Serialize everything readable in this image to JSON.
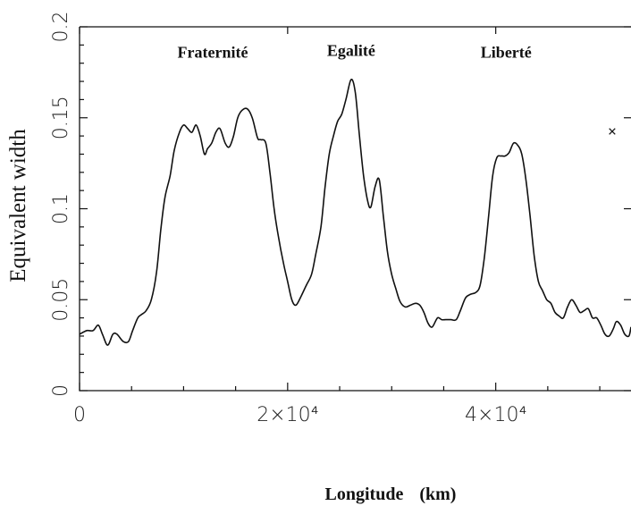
{
  "chart_data": {
    "type": "line",
    "title": "",
    "xlabel": "Longitude",
    "xunit": "(km)",
    "ylabel": "Equivalent width",
    "xlim": [
      0,
      53000
    ],
    "ylim": [
      0,
      0.2
    ],
    "x_ticks": [
      {
        "value": 0,
        "label": "0"
      },
      {
        "value": 20000,
        "label": "2×10⁴"
      },
      {
        "value": 40000,
        "label": "4×10⁴"
      }
    ],
    "y_ticks": [
      {
        "value": 0,
        "label": "0"
      },
      {
        "value": 0.05,
        "label": "0.05"
      },
      {
        "value": 0.1,
        "label": "0.1"
      },
      {
        "value": 0.15,
        "label": "0.15"
      },
      {
        "value": 0.2,
        "label": "0.2"
      }
    ],
    "annotations": [
      {
        "text": "Fraternité",
        "x": 12800,
        "y": 0.183
      },
      {
        "text": "Egalité",
        "x": 26100,
        "y": 0.184
      },
      {
        "text": "Liberté",
        "x": 41000,
        "y": 0.183
      }
    ],
    "marker": {
      "text": "×",
      "x": 51200,
      "y": 0.142
    },
    "series": [
      {
        "x": [
          0,
          700,
          1300,
          1800,
          2200,
          2700,
          3200,
          3600,
          4200,
          4700,
          5100,
          5600,
          6000,
          6400,
          6900,
          7400,
          7800,
          8200,
          8700,
          9100,
          9600,
          10000,
          10400,
          10800,
          11200,
          11600,
          12000,
          12300,
          12700,
          13100,
          13500,
          14000,
          14400,
          14800,
          15200,
          15600,
          16100,
          16600,
          17100,
          17400,
          17900,
          18300,
          18700,
          19100,
          19600,
          20000,
          20400,
          20800,
          21300,
          21800,
          22300,
          22700,
          23200,
          23600,
          24000,
          24400,
          24800,
          25200,
          25600,
          26100,
          26500,
          26900,
          27300,
          27700,
          28000,
          28400,
          28800,
          29200,
          29600,
          30000,
          30400,
          30800,
          31300,
          31800,
          32300,
          32700,
          33100,
          33500,
          33900,
          34400,
          34800,
          35200,
          35700,
          36200,
          36600,
          37100,
          37600,
          38100,
          38500,
          38900,
          39300,
          39700,
          40100,
          40500,
          40900,
          41300,
          41700,
          42100,
          42500,
          42900,
          43300,
          43700,
          44100,
          44500,
          44900,
          45300,
          45700,
          46100,
          46500,
          46900,
          47300,
          47700,
          48100,
          48500,
          48900,
          49300,
          49700,
          50100,
          50500,
          50900,
          51300,
          51600,
          52000,
          52400,
          52800,
          53000
        ],
        "values": [
          0.031,
          0.033,
          0.033,
          0.036,
          0.031,
          0.025,
          0.031,
          0.031,
          0.027,
          0.027,
          0.033,
          0.04,
          0.042,
          0.044,
          0.05,
          0.065,
          0.088,
          0.106,
          0.118,
          0.132,
          0.142,
          0.146,
          0.144,
          0.142,
          0.146,
          0.14,
          0.13,
          0.133,
          0.136,
          0.142,
          0.144,
          0.136,
          0.134,
          0.14,
          0.15,
          0.154,
          0.155,
          0.15,
          0.139,
          0.138,
          0.136,
          0.12,
          0.1,
          0.085,
          0.07,
          0.06,
          0.05,
          0.047,
          0.052,
          0.058,
          0.064,
          0.075,
          0.09,
          0.112,
          0.13,
          0.14,
          0.148,
          0.152,
          0.16,
          0.171,
          0.164,
          0.14,
          0.118,
          0.104,
          0.101,
          0.112,
          0.116,
          0.096,
          0.076,
          0.064,
          0.056,
          0.049,
          0.046,
          0.047,
          0.048,
          0.047,
          0.043,
          0.037,
          0.035,
          0.04,
          0.039,
          0.039,
          0.039,
          0.039,
          0.044,
          0.051,
          0.053,
          0.054,
          0.058,
          0.073,
          0.095,
          0.118,
          0.128,
          0.129,
          0.129,
          0.131,
          0.136,
          0.135,
          0.13,
          0.116,
          0.096,
          0.074,
          0.06,
          0.055,
          0.05,
          0.048,
          0.043,
          0.041,
          0.04,
          0.046,
          0.05,
          0.047,
          0.043,
          0.044,
          0.045,
          0.04,
          0.04,
          0.036,
          0.031,
          0.03,
          0.034,
          0.038,
          0.036,
          0.031,
          0.03,
          0.035
        ]
      }
    ]
  }
}
